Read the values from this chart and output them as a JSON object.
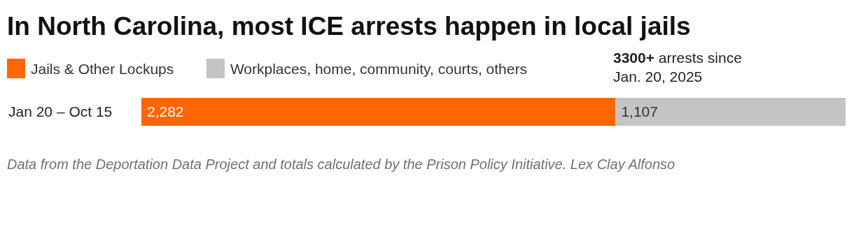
{
  "chart_data": {
    "type": "bar",
    "orientation": "horizontal",
    "stacked": true,
    "title": "In North Carolina, most ICE arrests happen in local jails",
    "categories": [
      "Jan 20 – Oct 15"
    ],
    "series": [
      {
        "name": "Jails & Other Lockups",
        "color": "#ff6600",
        "values": [
          2282
        ],
        "value_labels": [
          "2,282"
        ]
      },
      {
        "name": "Workplaces, home, community, courts, others",
        "color": "#c4c4c4",
        "values": [
          1107
        ],
        "value_labels": [
          "1,107"
        ]
      }
    ],
    "legend": "top left",
    "annotations": [
      "3300+ arrests since Jan. 20, 2025",
      "Data from the Deportation Data Project and totals calculated by the Prison Policy Initiative. Lex Clay Alfonso"
    ]
  }
}
